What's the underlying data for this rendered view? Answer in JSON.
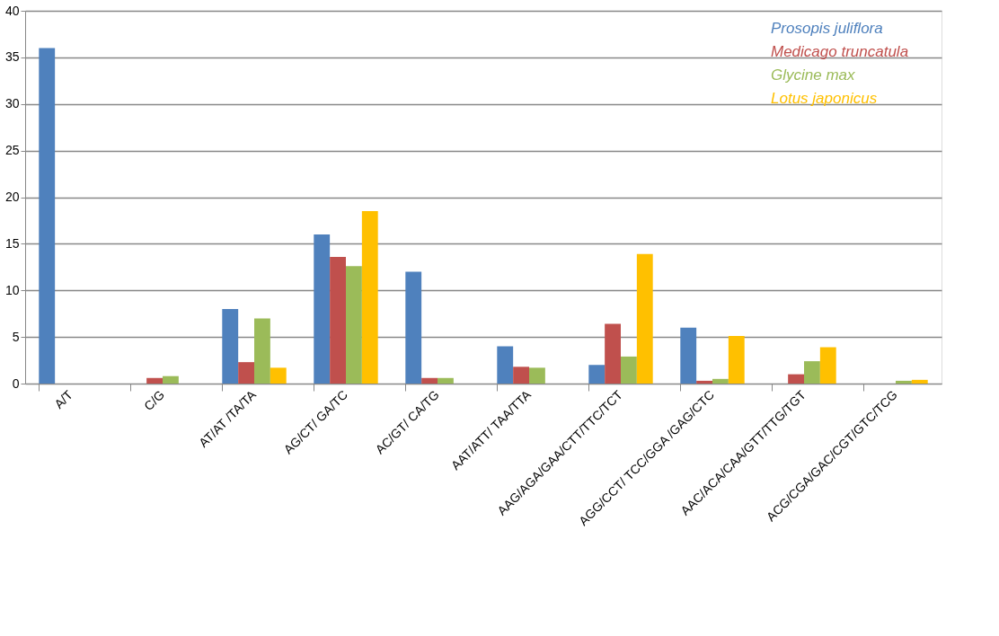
{
  "chart_data": {
    "type": "bar",
    "categories": [
      "A/T",
      "C/G",
      "AT/AT /TA/TA",
      "AG/CT/ GA/TC",
      "AC/GT/ CA/TG",
      "AAT/ATT/ TAA/TTA",
      "AAG/AGA/GAA/CTT/TTC/TCT",
      "AGG/CCT/ TCC/GGA /GAG/CTC",
      "AAC/ACA/CAA/GTT/TTG/TGT",
      "ACG/CGA/GAC/CGT/GTC/TCG"
    ],
    "series": [
      {
        "name": "Prosopis juliflora",
        "color": "#4f81bd",
        "values": [
          36,
          0,
          8,
          16,
          12,
          4,
          2,
          6,
          0,
          0
        ]
      },
      {
        "name": "Medicago truncatula",
        "color": "#c0504d",
        "values": [
          0,
          0.6,
          2.3,
          13.6,
          0.6,
          1.8,
          6.4,
          0.3,
          1,
          0
        ]
      },
      {
        "name": "Glycine max",
        "color": "#9bbb59",
        "values": [
          0,
          0.8,
          7,
          12.6,
          0.6,
          1.7,
          2.9,
          0.5,
          2.4,
          0.3
        ]
      },
      {
        "name": "Lotus japonicus",
        "color": "#ffc000",
        "values": [
          0,
          0,
          1.7,
          18.5,
          0,
          0,
          13.9,
          5.1,
          3.9,
          0.4
        ]
      }
    ],
    "ylim": [
      0,
      40
    ],
    "yticks": [
      0,
      5,
      10,
      15,
      20,
      25,
      30,
      35,
      40
    ],
    "grid": "y",
    "legend": "top right"
  }
}
